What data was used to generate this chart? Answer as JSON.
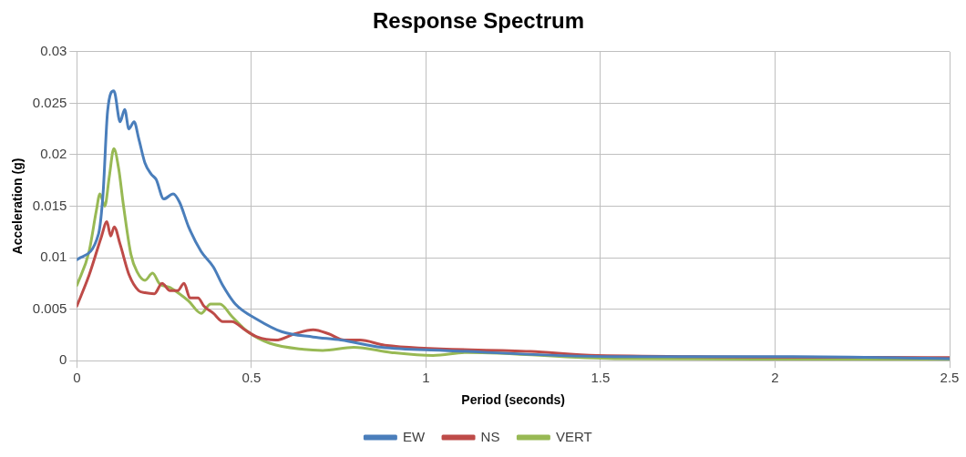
{
  "chart_data": {
    "type": "line",
    "title": "Response Spectrum",
    "xlabel": "Period (seconds)",
    "ylabel": "Acceleration (g)",
    "xlim": [
      0,
      2.5
    ],
    "xticks": [
      0,
      0.5,
      1,
      1.5,
      2,
      2.5
    ],
    "ylim": [
      0,
      0.03
    ],
    "yticks": [
      0,
      0.005,
      0.01,
      0.015,
      0.02,
      0.025,
      0.03
    ],
    "grid": true,
    "legend": "bottom",
    "marker": "none",
    "line_style": "solid",
    "series": [
      {
        "name": "EW",
        "color": "#4a7ebb",
        "x": [
          0,
          0.062,
          0.075,
          0.088,
          0.106,
          0.124,
          0.137,
          0.149,
          0.164,
          0.177,
          0.195,
          0.213,
          0.227,
          0.249,
          0.276,
          0.294,
          0.32,
          0.356,
          0.391,
          0.418,
          0.454,
          0.517,
          0.588,
          0.677,
          0.757,
          0.873,
          1.05,
          1.54,
          2.05,
          2.5
        ],
        "values": [
          0.0098,
          0.0123,
          0.0162,
          0.0242,
          0.0262,
          0.0232,
          0.0244,
          0.0225,
          0.0232,
          0.0216,
          0.0192,
          0.0181,
          0.0176,
          0.0157,
          0.0162,
          0.0154,
          0.013,
          0.0106,
          0.0091,
          0.0073,
          0.0055,
          0.004,
          0.0028,
          0.0023,
          0.002,
          0.0013,
          0.001,
          0.0004,
          0.0004,
          0.0002
        ]
      },
      {
        "name": "NS",
        "color": "#be4b48",
        "x": [
          0,
          0.035,
          0.07,
          0.086,
          0.097,
          0.107,
          0.124,
          0.15,
          0.177,
          0.195,
          0.222,
          0.244,
          0.267,
          0.289,
          0.307,
          0.324,
          0.347,
          0.364,
          0.391,
          0.418,
          0.444,
          0.481,
          0.517,
          0.57,
          0.624,
          0.677,
          0.722,
          0.766,
          0.811,
          0.882,
          1.3,
          1.49,
          2.5
        ],
        "values": [
          0.0053,
          0.0083,
          0.012,
          0.0135,
          0.0121,
          0.013,
          0.0113,
          0.0083,
          0.0068,
          0.0066,
          0.0065,
          0.0075,
          0.0068,
          0.0068,
          0.0075,
          0.0061,
          0.0061,
          0.0053,
          0.0046,
          0.0038,
          0.0038,
          0.003,
          0.0023,
          0.002,
          0.0026,
          0.003,
          0.0026,
          0.002,
          0.002,
          0.0015,
          0.0009,
          0.0005,
          0.0003
        ]
      },
      {
        "name": "VERT",
        "color": "#98b954",
        "x": [
          0,
          0.035,
          0.056,
          0.066,
          0.08,
          0.093,
          0.106,
          0.12,
          0.133,
          0.155,
          0.173,
          0.195,
          0.217,
          0.236,
          0.267,
          0.294,
          0.32,
          0.356,
          0.383,
          0.41,
          0.444,
          0.49,
          0.552,
          0.65,
          0.704,
          0.793,
          0.9,
          1.02,
          1.12,
          1.54,
          2.5
        ],
        "values": [
          0.0073,
          0.0106,
          0.0146,
          0.0162,
          0.015,
          0.0179,
          0.0206,
          0.0186,
          0.0152,
          0.0103,
          0.0086,
          0.0078,
          0.0085,
          0.0075,
          0.0071,
          0.0065,
          0.0058,
          0.0046,
          0.0055,
          0.0055,
          0.0043,
          0.0028,
          0.0017,
          0.0011,
          0.001,
          0.0013,
          0.0008,
          0.0005,
          0.0008,
          0.0002,
          0.0001
        ]
      }
    ]
  }
}
